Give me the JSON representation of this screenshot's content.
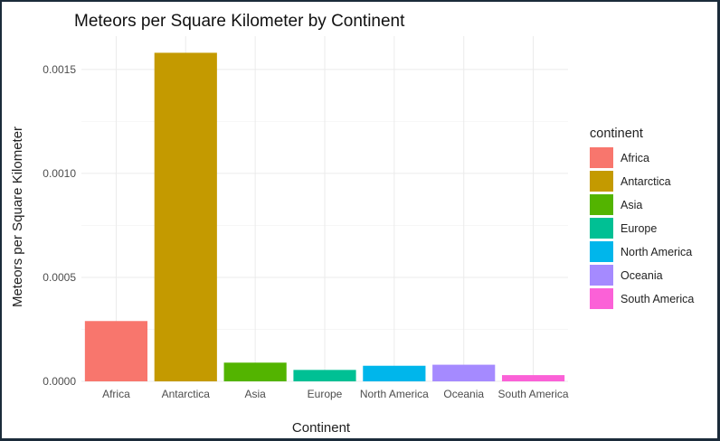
{
  "chart_data": {
    "type": "bar",
    "title": "Meteors per Square Kilometer by Continent",
    "xlabel": "Continent",
    "ylabel": "Meteors per Square Kilometer",
    "categories": [
      "Africa",
      "Antarctica",
      "Asia",
      "Europe",
      "North America",
      "Oceania",
      "South America"
    ],
    "values": [
      0.00029,
      0.00158,
      9e-05,
      5.5e-05,
      7.5e-05,
      8e-05,
      3e-05
    ],
    "colors": [
      "#F8766D",
      "#C49A00",
      "#53B400",
      "#00C094",
      "#00B6EB",
      "#A58AFF",
      "#FB61D7"
    ],
    "ylim": [
      0,
      0.00166
    ],
    "yticks": [
      0.0,
      0.0005,
      0.001,
      0.0015
    ],
    "ytick_labels": [
      "0.0000",
      "0.0005",
      "0.0010",
      "0.0015"
    ],
    "grid": true,
    "legend": {
      "title": "continent",
      "position": "right",
      "items": [
        "Africa",
        "Antarctica",
        "Asia",
        "Europe",
        "North America",
        "Oceania",
        "South America"
      ]
    }
  }
}
